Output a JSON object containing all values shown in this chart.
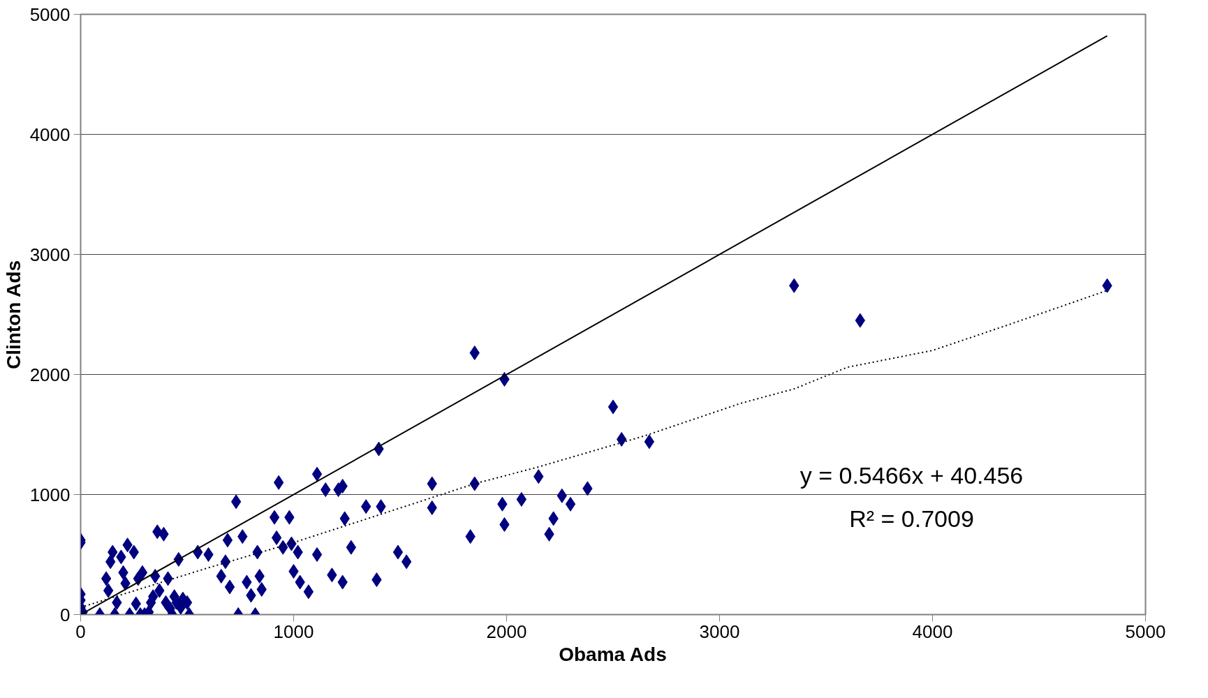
{
  "chart_data": {
    "type": "scatter",
    "xlabel": "Obama Ads",
    "ylabel": "Clinton Ads",
    "xlim": [
      0,
      5000
    ],
    "ylim": [
      0,
      5000
    ],
    "xticks": [
      0,
      1000,
      2000,
      3000,
      4000,
      5000
    ],
    "yticks": [
      0,
      1000,
      2000,
      3000,
      4000,
      5000
    ],
    "grid": "y",
    "marker": "diamond",
    "annotations": [
      "y = 0.5466x + 40.456",
      "R² = 0.7009"
    ],
    "series": [
      {
        "color": "#000080",
        "x": [
          0,
          0,
          0,
          0,
          0,
          10,
          90,
          120,
          130,
          140,
          150,
          160,
          170,
          190,
          200,
          210,
          220,
          230,
          250,
          260,
          270,
          280,
          290,
          300,
          320,
          330,
          340,
          350,
          360,
          370,
          390,
          400,
          410,
          420,
          430,
          440,
          450,
          460,
          470,
          480,
          500,
          510,
          550,
          600,
          660,
          680,
          690,
          700,
          730,
          740,
          760,
          780,
          800,
          820,
          830,
          840,
          850,
          910,
          920,
          930,
          950,
          980,
          990,
          1000,
          1020,
          1030,
          1070,
          1110,
          1110,
          1150,
          1180,
          1210,
          1230,
          1230,
          1240,
          1270,
          1340,
          1390,
          1400,
          1410,
          1490,
          1530,
          1650,
          1650,
          1830,
          1850,
          1850,
          1980,
          1990,
          1990,
          2070,
          2150,
          2200,
          2220,
          2260,
          2300,
          2380,
          2500,
          2540,
          2670,
          3350,
          3660,
          4820
        ],
        "values": [
          620,
          600,
          170,
          120,
          60,
          20,
          0,
          300,
          200,
          440,
          520,
          0,
          100,
          480,
          350,
          260,
          580,
          0,
          520,
          90,
          300,
          0,
          350,
          0,
          20,
          100,
          150,
          320,
          690,
          200,
          670,
          100,
          300,
          50,
          0,
          150,
          100,
          460,
          60,
          130,
          100,
          0,
          520,
          500,
          320,
          440,
          620,
          230,
          940,
          0,
          650,
          270,
          160,
          0,
          520,
          320,
          210,
          810,
          640,
          1100,
          560,
          810,
          590,
          360,
          520,
          270,
          190,
          500,
          1170,
          1040,
          330,
          1040,
          1070,
          270,
          800,
          560,
          900,
          290,
          1380,
          900,
          520,
          440,
          1090,
          890,
          650,
          2180,
          1090,
          920,
          1960,
          750,
          960,
          1150,
          670,
          800,
          990,
          920,
          1050,
          1730,
          1460,
          1440,
          2740,
          2450,
          2740
        ]
      },
      {
        "type": "line",
        "color": "#000000",
        "line_style": "solid",
        "marker": "none",
        "x": [
          0,
          4820
        ],
        "values": [
          0,
          4820
        ]
      },
      {
        "type": "line",
        "color": "#000000",
        "line_style": "dotted",
        "marker": "none",
        "x": [
          0,
          200,
          400,
          600,
          1000,
          1400,
          1850,
          2150,
          2400,
          2650,
          3100,
          3350,
          3600,
          4000,
          4350,
          4820
        ],
        "values": [
          60,
          170,
          280,
          390,
          600,
          830,
          1090,
          1230,
          1360,
          1490,
          1760,
          1880,
          2060,
          2200,
          2410,
          2700
        ]
      }
    ]
  }
}
